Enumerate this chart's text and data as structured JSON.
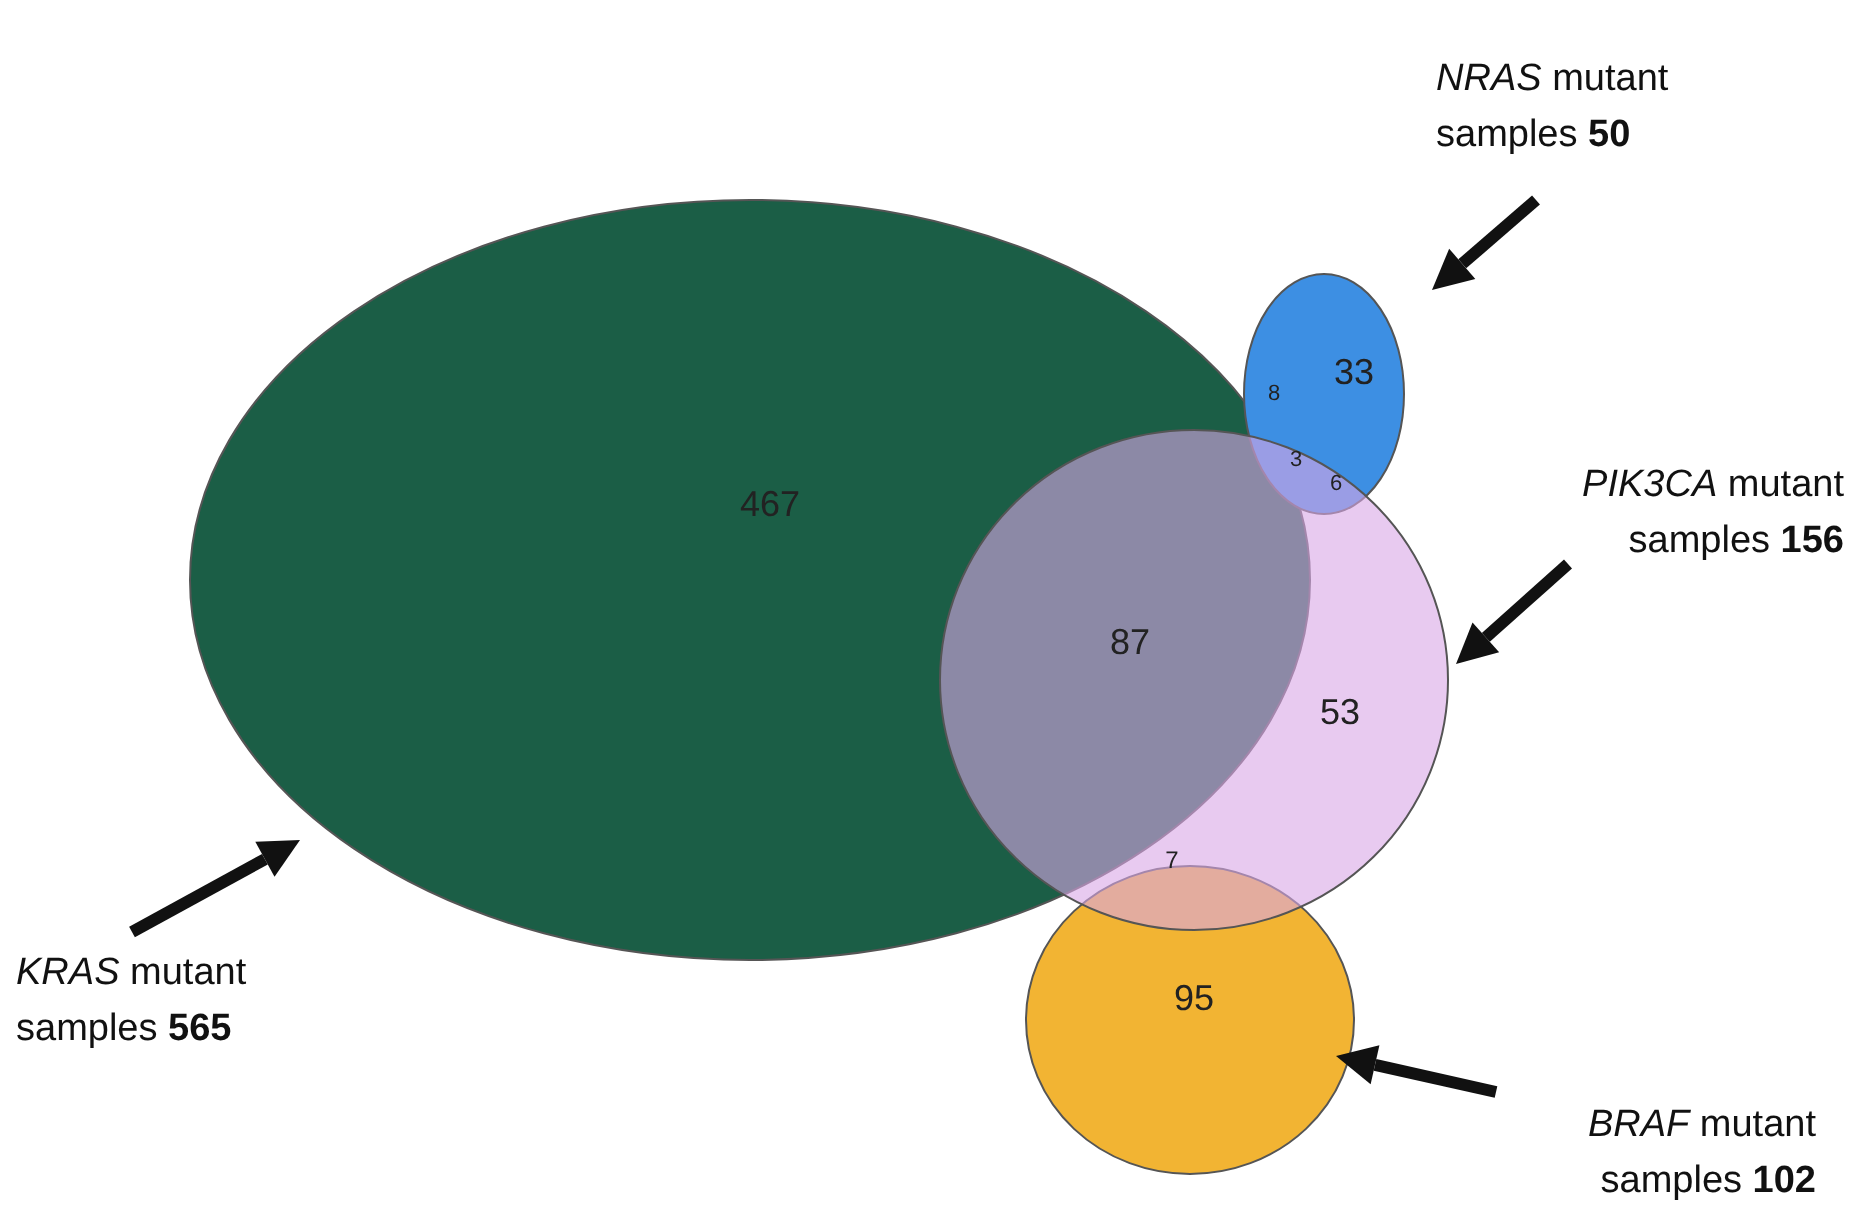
{
  "chart_data": {
    "type": "other",
    "categories": [
      "KRAS mutant samples",
      "NRAS mutant samples",
      "PIK3CA mutant samples",
      "BRAF mutant samples"
    ],
    "values": [
      565,
      50,
      156,
      102
    ],
    "colors": [
      "#1b5e46",
      "#3d8fe3",
      "#d8a6e6",
      "#f2b433"
    ],
    "data_labels": true,
    "annotations": [
      "467",
      "33",
      "8",
      "3",
      "6",
      "87",
      "53",
      "7",
      "95"
    ]
  }
}
